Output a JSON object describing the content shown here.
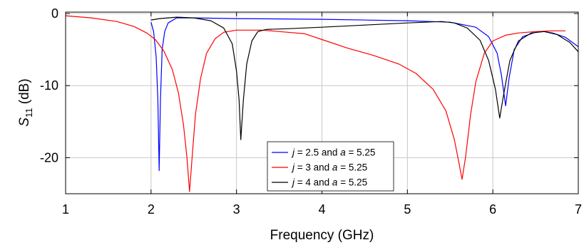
{
  "chart_data": {
    "type": "line",
    "xlabel": "Frequency (GHz)",
    "ylabel_main": "S",
    "ylabel_sub": "11",
    "ylabel_unit": " (dB)",
    "xlim": [
      1,
      7
    ],
    "ylim": [
      -25,
      0.2
    ],
    "x_ticks": [
      1,
      2,
      3,
      4,
      5,
      6,
      7
    ],
    "y_ticks": [
      0,
      -10,
      -20
    ],
    "x_tick_labels": [
      "1",
      "2",
      "3",
      "4",
      "5",
      "6",
      "7"
    ],
    "y_tick_labels": [
      "0",
      "-10",
      "-20"
    ],
    "grid": true,
    "legend_position": "bottom-center",
    "series": [
      {
        "name": "j = 2.5 and a = 5.25",
        "legend": {
          "v1": "j",
          "t1": " = 2.5 and ",
          "v2": "a",
          "t2": " = 5.25"
        },
        "color": "#0000ff",
        "points": [
          [
            2.0,
            -1.2
          ],
          [
            2.03,
            -2.5
          ],
          [
            2.06,
            -6
          ],
          [
            2.08,
            -12
          ],
          [
            2.095,
            -21.8
          ],
          [
            2.11,
            -12
          ],
          [
            2.13,
            -5
          ],
          [
            2.16,
            -2.5
          ],
          [
            2.2,
            -1.3
          ],
          [
            2.3,
            -0.6
          ],
          [
            2.5,
            -0.6
          ],
          [
            3.0,
            -0.7
          ],
          [
            4.0,
            -0.8
          ],
          [
            5.0,
            -1.0
          ],
          [
            5.5,
            -1.2
          ],
          [
            5.8,
            -1.9
          ],
          [
            5.95,
            -3.2
          ],
          [
            6.05,
            -5.5
          ],
          [
            6.1,
            -8.5
          ],
          [
            6.15,
            -12.8
          ],
          [
            6.19,
            -9
          ],
          [
            6.25,
            -5
          ],
          [
            6.35,
            -3.2
          ],
          [
            6.5,
            -2.6
          ],
          [
            6.6,
            -2.5
          ],
          [
            6.7,
            -2.7
          ],
          [
            6.85,
            -3.3
          ],
          [
            7.0,
            -4.6
          ]
        ]
      },
      {
        "name": "j = 3 and a = 5.25",
        "legend": {
          "v1": "j",
          "t1": " = 3 and ",
          "v2": "a",
          "t2": " = 5.25"
        },
        "color": "#ff0000",
        "points": [
          [
            1.0,
            -0.3
          ],
          [
            1.3,
            -0.6
          ],
          [
            1.6,
            -1.1
          ],
          [
            1.8,
            -1.8
          ],
          [
            1.95,
            -2.7
          ],
          [
            2.05,
            -3.6
          ],
          [
            2.15,
            -5.2
          ],
          [
            2.25,
            -7.8
          ],
          [
            2.32,
            -11
          ],
          [
            2.38,
            -15.5
          ],
          [
            2.42,
            -20
          ],
          [
            2.45,
            -24.7
          ],
          [
            2.48,
            -20
          ],
          [
            2.52,
            -14
          ],
          [
            2.58,
            -9
          ],
          [
            2.65,
            -5.5
          ],
          [
            2.75,
            -3.5
          ],
          [
            2.85,
            -2.6
          ],
          [
            3.0,
            -2.3
          ],
          [
            3.3,
            -2.3
          ],
          [
            3.6,
            -2.6
          ],
          [
            3.8,
            -2.8
          ],
          [
            3.85,
            -3.0
          ],
          [
            4.0,
            -3.6
          ],
          [
            4.3,
            -4.8
          ],
          [
            4.6,
            -5.8
          ],
          [
            4.9,
            -7.0
          ],
          [
            5.1,
            -8.3
          ],
          [
            5.3,
            -10.5
          ],
          [
            5.45,
            -13.5
          ],
          [
            5.55,
            -17.5
          ],
          [
            5.6,
            -20.5
          ],
          [
            5.64,
            -23
          ],
          [
            5.68,
            -20
          ],
          [
            5.74,
            -14
          ],
          [
            5.8,
            -9.5
          ],
          [
            5.9,
            -5.5
          ],
          [
            6.0,
            -3.8
          ],
          [
            6.15,
            -3.0
          ],
          [
            6.3,
            -2.7
          ],
          [
            6.5,
            -2.5
          ],
          [
            6.7,
            -2.4
          ],
          [
            6.85,
            -2.4
          ]
        ]
      },
      {
        "name": "j = 4 and a = 5.25",
        "legend": {
          "v1": "j",
          "t1": " = 4 and ",
          "v2": "a",
          "t2": " = 5.25"
        },
        "color": "#000000",
        "points": [
          [
            2.0,
            -0.9
          ],
          [
            2.1,
            -0.7
          ],
          [
            2.3,
            -0.5
          ],
          [
            2.5,
            -0.6
          ],
          [
            2.7,
            -1.0
          ],
          [
            2.85,
            -2.0
          ],
          [
            2.95,
            -4.2
          ],
          [
            3.0,
            -8
          ],
          [
            3.03,
            -12
          ],
          [
            3.05,
            -17.5
          ],
          [
            3.08,
            -12
          ],
          [
            3.12,
            -7
          ],
          [
            3.18,
            -3.8
          ],
          [
            3.25,
            -2.5
          ],
          [
            3.35,
            -2.2
          ],
          [
            3.6,
            -2.1
          ],
          [
            4.0,
            -1.9
          ],
          [
            4.5,
            -1.6
          ],
          [
            5.0,
            -1.3
          ],
          [
            5.4,
            -1.1
          ],
          [
            5.55,
            -1.3
          ],
          [
            5.7,
            -2.0
          ],
          [
            5.85,
            -3.7
          ],
          [
            5.95,
            -6.5
          ],
          [
            6.03,
            -10.5
          ],
          [
            6.08,
            -14.5
          ],
          [
            6.13,
            -11
          ],
          [
            6.2,
            -6.5
          ],
          [
            6.3,
            -3.8
          ],
          [
            6.45,
            -2.7
          ],
          [
            6.6,
            -2.5
          ],
          [
            6.75,
            -2.9
          ],
          [
            6.9,
            -4.0
          ],
          [
            7.0,
            -5.3
          ]
        ]
      }
    ]
  }
}
